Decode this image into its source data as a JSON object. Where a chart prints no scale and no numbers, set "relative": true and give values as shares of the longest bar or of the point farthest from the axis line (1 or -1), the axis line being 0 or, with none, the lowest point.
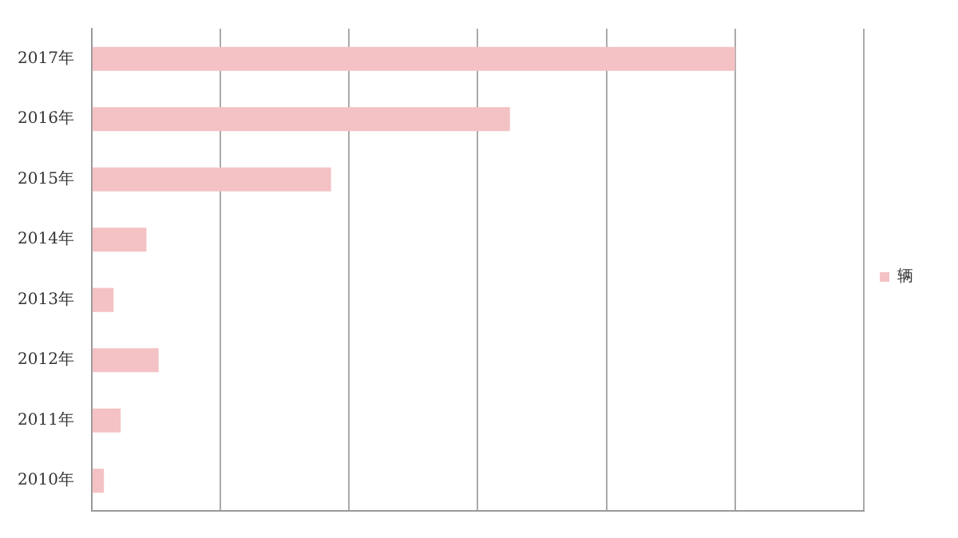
{
  "chart_data": {
    "type": "bar",
    "orientation": "horizontal",
    "relative": true,
    "categories": [
      "2017年",
      "2016年",
      "2015年",
      "2014年",
      "2013年",
      "2012年",
      "2011年",
      "2010年"
    ],
    "series": [
      {
        "name": "辆",
        "color": "#f4c2c4",
        "values": [
          1,
          0.65,
          0.372,
          0.085,
          0.034,
          0.104,
          0.045,
          0.019
        ]
      }
    ],
    "grid": "x",
    "legend": "right"
  }
}
